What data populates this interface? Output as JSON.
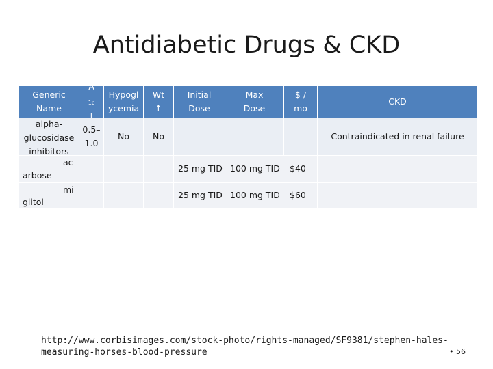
{
  "title": "Antidiabetic Drugs & CKD",
  "table": {
    "headers": {
      "generic": [
        "Generic",
        "Name"
      ],
      "a1c_main": "A",
      "a1c_sub": "1c",
      "a1c_arrow": "↓",
      "hypo": [
        "Hypogl",
        "ycemia"
      ],
      "wt": [
        "Wt",
        "↑"
      ],
      "initial": [
        "Initial",
        "Dose"
      ],
      "max": [
        "Max",
        "Dose"
      ],
      "cost": [
        "$ /",
        "mo"
      ],
      "ckd": "CKD"
    },
    "class_row": {
      "name": [
        "alpha-",
        "glucosidase",
        "inhibitors"
      ],
      "a1c": [
        "0.5–",
        "1.0"
      ],
      "hypo": "No",
      "wt": "No",
      "ckd": "Contraindicated in renal failure"
    },
    "rows": [
      {
        "name_top": "ac",
        "name_bottom": "arbose",
        "initial": "25 mg TID",
        "max": "100 mg TID",
        "cost": "$40"
      },
      {
        "name_top": "mi",
        "name_bottom": "glitol",
        "initial": "25 mg TID",
        "max": "100 mg TID",
        "cost": "$60"
      }
    ]
  },
  "footer": {
    "url": "http://www.corbisimages.com/stock-photo/rights-managed/SF9381/stephen-hales-\nmeasuring-horses-blood-pressure",
    "page": "• 56"
  },
  "colors": {
    "header": "#4f81bd",
    "row_light": "#eaeef4"
  }
}
